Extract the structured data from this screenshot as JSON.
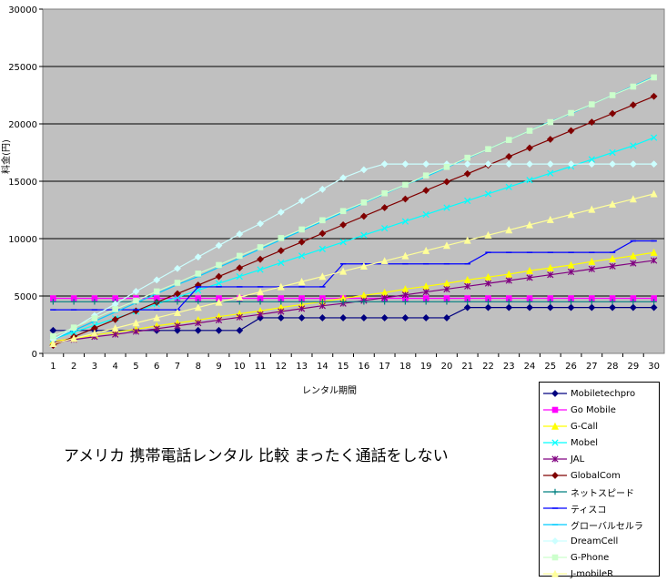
{
  "chart_data": {
    "type": "line",
    "xlabel": "レンタル期間",
    "ylabel": "料金(円)",
    "x": [
      1,
      2,
      3,
      4,
      5,
      6,
      7,
      8,
      9,
      10,
      11,
      12,
      13,
      14,
      15,
      16,
      17,
      18,
      19,
      20,
      21,
      22,
      23,
      24,
      25,
      26,
      27,
      28,
      29,
      30
    ],
    "ylim": [
      0,
      30000
    ],
    "yticks": [
      0,
      5000,
      10000,
      15000,
      20000,
      25000,
      30000
    ],
    "grid": true,
    "legend_position": "bottom-right",
    "series": [
      {
        "name": "Mobiletechpro",
        "color": "#000080",
        "marker": "diamond",
        "values": [
          2000,
          2000,
          2000,
          2000,
          2000,
          2000,
          2000,
          2000,
          2000,
          2000,
          3100,
          3100,
          3100,
          3100,
          3100,
          3100,
          3100,
          3100,
          3100,
          3100,
          4000,
          4000,
          4000,
          4000,
          4000,
          4000,
          4000,
          4000,
          4000,
          4000
        ]
      },
      {
        "name": "Go Mobile",
        "color": "#ff00ff",
        "marker": "square",
        "values": [
          4800,
          4800,
          4800,
          4800,
          4800,
          4800,
          4800,
          4800,
          4800,
          4800,
          4800,
          4800,
          4800,
          4800,
          4800,
          4800,
          4800,
          4800,
          4800,
          4800,
          4800,
          4800,
          4800,
          4800,
          4800,
          4800,
          4800,
          4800,
          4800,
          4800
        ]
      },
      {
        "name": "G-Call",
        "color": "#ffff00",
        "marker": "triangle",
        "values": [
          1050,
          1300,
          1600,
          1850,
          2100,
          2400,
          2650,
          2900,
          3200,
          3450,
          3700,
          4000,
          4250,
          4500,
          4800,
          5050,
          5300,
          5600,
          5850,
          6100,
          6400,
          6650,
          6900,
          7200,
          7450,
          7700,
          8000,
          8250,
          8500,
          8800
        ]
      },
      {
        "name": "Mobel",
        "color": "#00ffff",
        "marker": "x",
        "values": [
          1250,
          1850,
          2450,
          3050,
          3650,
          4300,
          4900,
          5500,
          6100,
          6700,
          7300,
          7900,
          8500,
          9100,
          9700,
          10300,
          10900,
          11500,
          12100,
          12700,
          13300,
          13900,
          14500,
          15100,
          15700,
          16300,
          16900,
          17500,
          18100,
          18800
        ]
      },
      {
        "name": "JAL",
        "color": "#800080",
        "marker": "asterisk",
        "values": [
          950,
          1200,
          1450,
          1650,
          1900,
          2150,
          2400,
          2650,
          2900,
          3150,
          3400,
          3650,
          3900,
          4150,
          4350,
          4600,
          4850,
          5100,
          5350,
          5600,
          5850,
          6100,
          6350,
          6600,
          6850,
          7100,
          7350,
          7600,
          7850,
          8100
        ]
      },
      {
        "name": "GlobalCom",
        "color": "#800000",
        "marker": "diamond",
        "values": [
          700,
          1450,
          2200,
          2950,
          3700,
          4450,
          5200,
          5950,
          6700,
          7450,
          8200,
          8950,
          9700,
          10450,
          11200,
          11950,
          12700,
          13450,
          14200,
          14950,
          15650,
          16400,
          17150,
          17900,
          18650,
          19400,
          20150,
          20900,
          21650,
          22400
        ]
      },
      {
        "name": "ネットスピード",
        "color": "#008080",
        "marker": "plus",
        "values": [
          4500,
          4500,
          4500,
          4500,
          4500,
          4500,
          4500,
          4500,
          4500,
          4500,
          4500,
          4500,
          4500,
          4500,
          4500,
          4500,
          4500,
          4500,
          4500,
          4500,
          4500,
          4500,
          4500,
          4500,
          4500,
          4500,
          4500,
          4500,
          4500,
          4500
        ]
      },
      {
        "name": "ティスコ",
        "color": "#0000ff",
        "marker": "dash",
        "values": [
          3800,
          3800,
          3800,
          3800,
          3800,
          3800,
          3800,
          5800,
          5800,
          5800,
          5800,
          5800,
          5800,
          5800,
          7800,
          7800,
          7800,
          7800,
          7800,
          7800,
          7800,
          8800,
          8800,
          8800,
          8800,
          8800,
          8800,
          8800,
          9800,
          9800
        ]
      },
      {
        "name": "グローバルセルラ",
        "color": "#00ccff",
        "marker": "dash",
        "values": [
          1200,
          2000,
          2800,
          3600,
          4400,
          5200,
          6000,
          6700,
          7500,
          8300,
          9100,
          9900,
          10700,
          11500,
          12300,
          13100,
          13900,
          14700,
          15400,
          16200,
          17000,
          17800,
          18600,
          19400,
          20200,
          20900,
          21700,
          22500,
          23300,
          24100
        ]
      },
      {
        "name": "DreamCell",
        "color": "#ccffff",
        "marker": "diamond",
        "values": [
          1200,
          2200,
          3300,
          4300,
          5400,
          6400,
          7400,
          8400,
          9400,
          10400,
          11300,
          12300,
          13300,
          14300,
          15300,
          16000,
          16500,
          16500,
          16500,
          16500,
          16500,
          16500,
          16500,
          16500,
          16500,
          16500,
          16500,
          16500,
          16500,
          16500
        ]
      },
      {
        "name": "G-Phone",
        "color": "#ccffcc",
        "marker": "square",
        "values": [
          1500,
          2250,
          3050,
          3850,
          4600,
          5400,
          6150,
          6950,
          7700,
          8500,
          9250,
          10050,
          10800,
          11600,
          12400,
          13150,
          13950,
          14700,
          15500,
          16250,
          17050,
          17800,
          18600,
          19400,
          20150,
          20950,
          21700,
          22500,
          23250,
          24050
        ]
      },
      {
        "name": "J-mobileR",
        "color": "#ffff99",
        "marker": "triangle",
        "values": [
          850,
          1300,
          1750,
          2200,
          2650,
          3100,
          3550,
          4000,
          4450,
          4900,
          5350,
          5800,
          6250,
          6700,
          7150,
          7600,
          8050,
          8500,
          8950,
          9400,
          9850,
          10300,
          10750,
          11200,
          11650,
          12100,
          12550,
          13000,
          13450,
          13900
        ]
      }
    ]
  },
  "caption": "アメリカ 携帯電話レンタル 比較 まったく通話をしない"
}
